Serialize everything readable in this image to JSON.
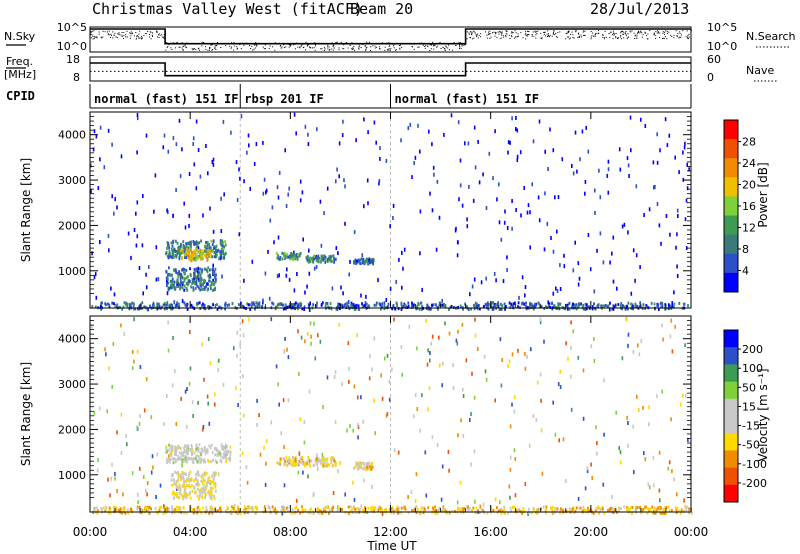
{
  "header": {
    "station": "Christmas Valley West (fitACF)",
    "beam": "Beam 20",
    "date": "28/Jul/2013"
  },
  "left_labels": {
    "nsky": "N.Sky",
    "freq_top": "Freq.",
    "freq_unit": "[MHz]",
    "cpid": "CPID"
  },
  "right_labels": {
    "nsearch": "N.Search",
    "nave": "Nave"
  },
  "colors": {
    "colorbar_power": [
      "#0000ff",
      "#2b50c8",
      "#3a7a7a",
      "#3d9b53",
      "#7fd13b",
      "#f0c000",
      "#f08c00",
      "#f05000",
      "#ff0000"
    ],
    "colorbar_velocity": [
      "#ff0000",
      "#f05000",
      "#f08c00",
      "#ffd800",
      "#c8c8c8",
      "#c8c8c8",
      "#7fd13b",
      "#3d9b53",
      "#2b50c8",
      "#0000ff"
    ]
  },
  "chart_data": [
    {
      "type": "line",
      "panel": "noise",
      "left_axis": {
        "label": "N.Sky",
        "ticks": [
          "10^5",
          "10^0"
        ]
      },
      "right_axis": {
        "label": "N.Search",
        "ticks": [
          "10^5",
          "10^0"
        ]
      },
      "series": [
        {
          "x": [
            0,
            3.0,
            3.0,
            15.0,
            15.0,
            24
          ],
          "y": [
            1.0,
            1.0,
            0.3,
            0.3,
            1.0,
            1.0
          ]
        }
      ]
    },
    {
      "type": "line",
      "panel": "freq_nave",
      "left_axis": {
        "label": "Freq. [MHz]",
        "ticks": [
          "18",
          "8"
        ],
        "ylim": [
          8,
          18
        ]
      },
      "right_axis": {
        "label": "Nave",
        "ticks": [
          "60",
          "0"
        ],
        "ylim": [
          0,
          60
        ]
      },
      "series": [
        {
          "name": "Freq.",
          "x": [
            0,
            3.0,
            3.0,
            15.0,
            15.0,
            24
          ],
          "y": [
            15.5,
            15.5,
            10.2,
            10.2,
            15.5,
            15.5
          ]
        },
        {
          "name": "Nave",
          "x": [
            0,
            24
          ],
          "y": [
            24,
            24
          ]
        }
      ]
    },
    {
      "type": "table",
      "panel": "cpid",
      "segments": [
        {
          "start": 0,
          "end": 6,
          "label": "normal (fast) 151 IF"
        },
        {
          "start": 6,
          "end": 12,
          "label": "rbsp 201 IF"
        },
        {
          "start": 12,
          "end": 24,
          "label": "normal (fast) 151 IF"
        }
      ]
    },
    {
      "type": "heatmap",
      "panel": "power",
      "ylabel": "Slant Range [km]",
      "ylim": [
        180,
        4500
      ],
      "xlim": [
        0,
        24
      ],
      "yticks": [
        "4000",
        "3000",
        "2000",
        "1000"
      ],
      "colorbar": {
        "label": "Power [dB]",
        "ticks": [
          "28",
          "24",
          "20",
          "16",
          "12",
          "8",
          "4"
        ],
        "range": [
          0,
          30
        ]
      },
      "features": [
        {
          "x": [
            3.0,
            5.4
          ],
          "y": [
            1300,
            1700
          ],
          "level": 9
        },
        {
          "x": [
            3.6,
            4.8
          ],
          "y": [
            1250,
            1500
          ],
          "level": 18
        },
        {
          "x": [
            3.0,
            5.0
          ],
          "y": [
            600,
            1100
          ],
          "level": 8
        },
        {
          "x": [
            7.4,
            8.4
          ],
          "y": [
            1280,
            1420
          ],
          "level": 10
        },
        {
          "x": [
            8.6,
            9.8
          ],
          "y": [
            1220,
            1360
          ],
          "level": 9
        },
        {
          "x": [
            10.5,
            11.3
          ],
          "y": [
            1180,
            1300
          ],
          "level": 8
        },
        {
          "x": [
            0,
            24
          ],
          "y": [
            180,
            330
          ],
          "level": 6
        }
      ]
    },
    {
      "type": "heatmap",
      "panel": "velocity",
      "ylabel": "Slant Range [km]",
      "ylim": [
        180,
        4500
      ],
      "xlim": [
        0,
        24
      ],
      "yticks": [
        "4000",
        "3000",
        "2000",
        "1000"
      ],
      "colorbar": {
        "label": "Velocity [m s⁻¹]",
        "ticks": [
          "200",
          "100",
          "50",
          "15",
          "-15",
          "-50",
          "-100",
          "-200"
        ],
        "range": [
          -250,
          250
        ]
      },
      "features": [
        {
          "x": [
            3.0,
            5.6
          ],
          "y": [
            1300,
            1700
          ],
          "level": 0
        },
        {
          "x": [
            3.2,
            5.0
          ],
          "y": [
            500,
            1100
          ],
          "level": -40
        },
        {
          "x": [
            7.4,
            9.8
          ],
          "y": [
            1220,
            1420
          ],
          "level": -60
        },
        {
          "x": [
            10.5,
            11.3
          ],
          "y": [
            1150,
            1300
          ],
          "level": -60
        },
        {
          "x": [
            0,
            24
          ],
          "y": [
            180,
            330
          ],
          "level": -80
        }
      ]
    }
  ],
  "xaxis": {
    "label": "Time UT",
    "ticks": [
      "00:00",
      "04:00",
      "08:00",
      "12:00",
      "16:00",
      "20:00",
      "00:00"
    ],
    "tick_hours": [
      0,
      4,
      8,
      12,
      16,
      20,
      24
    ]
  }
}
